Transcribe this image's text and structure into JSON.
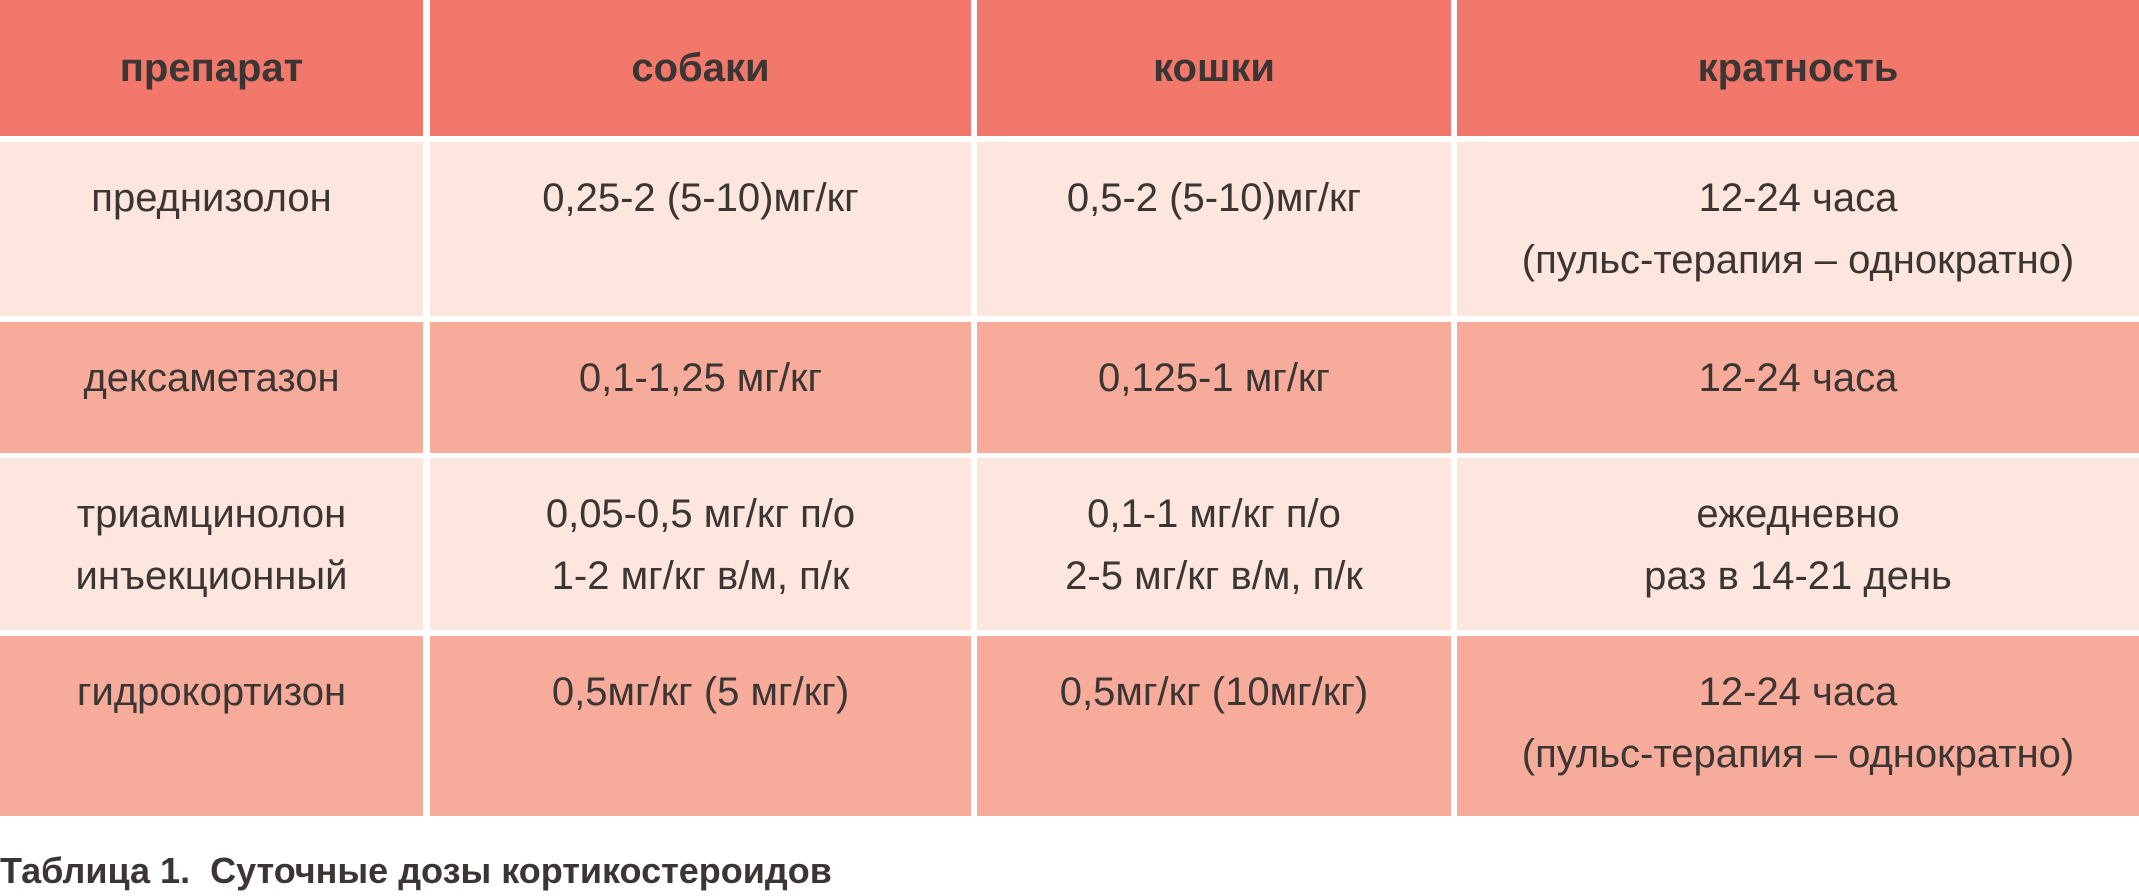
{
  "table": {
    "header": [
      "препарат",
      "собаки",
      "кошки",
      "кратность"
    ],
    "rows": [
      [
        [
          "преднизолон"
        ],
        [
          "0,25-2 (5-10)мг/кг"
        ],
        [
          "0,5-2 (5-10)мг/кг"
        ],
        [
          "12-24 часа",
          "(пульс-терапия – однократно)"
        ]
      ],
      [
        [
          "дексаметазон"
        ],
        [
          "0,1-1,25 мг/кг"
        ],
        [
          "0,125-1 мг/кг"
        ],
        [
          "12-24 часа"
        ]
      ],
      [
        [
          "триамцинолон",
          "инъекционный"
        ],
        [
          "0,05-0,5 мг/кг п/о",
          "1-2 мг/кг в/м, п/к"
        ],
        [
          "0,1-1 мг/кг п/о",
          "2-5 мг/кг в/м, п/к"
        ],
        [
          "ежедневно",
          "раз в 14-21 день"
        ]
      ],
      [
        [
          "гидрокортизон"
        ],
        [
          "0,5мг/кг (5 мг/кг)"
        ],
        [
          "0,5мг/кг (10мг/кг)"
        ],
        [
          "12-24 часа",
          "(пульс-терапия – однократно)"
        ]
      ]
    ]
  },
  "caption": "Таблица 1.  Суточные дозы кортикостероидов"
}
